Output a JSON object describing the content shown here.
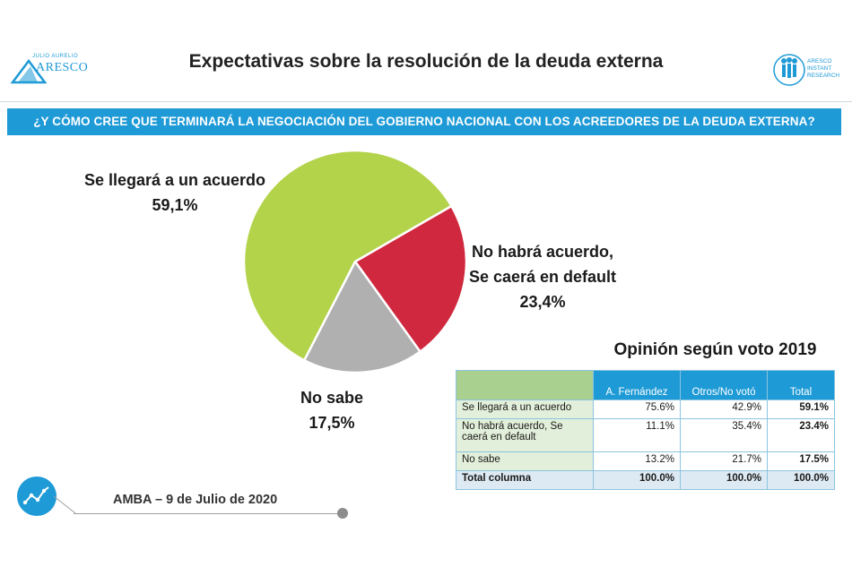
{
  "header": {
    "title": "Expectativas sobre la resolución de la deuda externa",
    "logo_left": {
      "small_text": "JULIO AURELIO",
      "name": "ARESCO"
    },
    "logo_right": {
      "lines": [
        "ARESCO",
        "INSTANT",
        "RESEARCH"
      ]
    }
  },
  "question": "¿Y CÓMO CREE QUE TERMINARÁ LA NEGOCIACIÓN DEL GOBIERNO NACIONAL CON LOS ACREEDORES DE LA DEUDA EXTERNA?",
  "pie_labels": {
    "acuerdo_name": "Se llegará a un acuerdo",
    "acuerdo_value": "59,1%",
    "default_line1": "No habrá acuerdo,",
    "default_line2": "Se caerá en default",
    "default_value": "23,4%",
    "nosabe_name": "No sabe",
    "nosabe_value": "17,5%"
  },
  "chart_data": {
    "type": "pie",
    "title": "Expectativas sobre la resolución de la deuda externa",
    "slices": [
      {
        "label": "Se llegará a un acuerdo",
        "value": 59.1,
        "color": "#b3d34a"
      },
      {
        "label": "No habrá acuerdo, Se caerá en default",
        "value": 23.4,
        "color": "#d0283e"
      },
      {
        "label": "No sabe",
        "value": 17.5,
        "color": "#b0b0b0"
      }
    ]
  },
  "table": {
    "title": "Opinión según voto 2019",
    "columns": [
      "",
      "A. Fernández",
      "Otros/No votó",
      "Total"
    ],
    "rows": [
      {
        "label": "Se llegará a un acuerdo",
        "c1": "75.6%",
        "c2": "42.9%",
        "c3": "59.1%"
      },
      {
        "label": "No habrá acuerdo, Se caerá en default",
        "c1": "11.1%",
        "c2": "35.4%",
        "c3": "23.4%"
      },
      {
        "label": "No sabe",
        "c1": "13.2%",
        "c2": "21.7%",
        "c3": "17.5%"
      },
      {
        "label": "Total columna",
        "c1": "100.0%",
        "c2": "100.0%",
        "c3": "100.0%"
      }
    ]
  },
  "footer": {
    "text": "AMBA – 9 de Julio de 2020"
  },
  "colors": {
    "accent": "#1e9ad6",
    "green": "#b3d34a",
    "red": "#d0283e",
    "grey": "#b0b0b0"
  }
}
